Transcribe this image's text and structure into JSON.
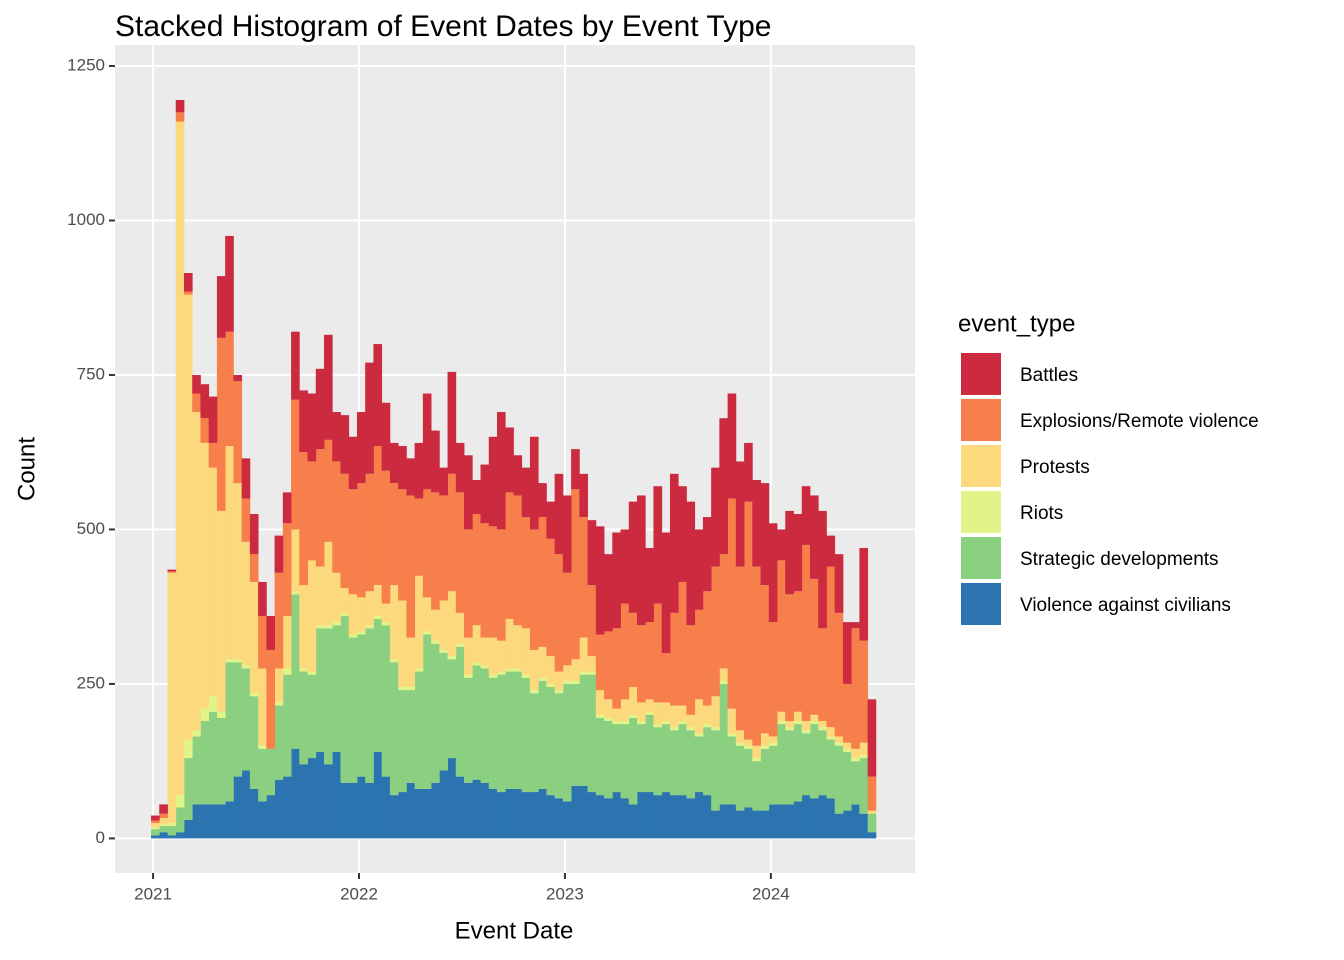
{
  "chart_data": {
    "type": "histogram",
    "stacked": true,
    "title": "Stacked Histogram of Event Dates by Event Type",
    "x_label": "Event Date",
    "y_label": "Count",
    "legend_title": "event_type",
    "legend": "right",
    "grid": true,
    "xlim": [
      2020.815,
      2024.7
    ],
    "xticks": [
      2021,
      2022,
      2023,
      2024
    ],
    "ylim": [
      -56,
      1284
    ],
    "yticks": [
      0,
      250,
      500,
      750,
      1000,
      1250
    ],
    "bins": [
      2020.99,
      2021.03,
      2021.07,
      2021.11,
      2021.15,
      2021.19,
      2021.23,
      2021.27,
      2021.31,
      2021.35,
      2021.39,
      2021.43,
      2021.47,
      2021.51,
      2021.55,
      2021.59,
      2021.63,
      2021.67,
      2021.71,
      2021.75,
      2021.79,
      2021.83,
      2021.87,
      2021.91,
      2021.95,
      2021.99,
      2022.03,
      2022.07,
      2022.11,
      2022.15,
      2022.19,
      2022.23,
      2022.27,
      2022.31,
      2022.35,
      2022.39,
      2022.43,
      2022.47,
      2022.51,
      2022.55,
      2022.59,
      2022.63,
      2022.67,
      2022.71,
      2022.75,
      2022.79,
      2022.83,
      2022.87,
      2022.91,
      2022.95,
      2022.99,
      2023.03,
      2023.07,
      2023.11,
      2023.15,
      2023.19,
      2023.23,
      2023.27,
      2023.31,
      2023.35,
      2023.39,
      2023.43,
      2023.47,
      2023.51,
      2023.55,
      2023.59,
      2023.63,
      2023.67,
      2023.71,
      2023.75,
      2023.79,
      2023.83,
      2023.87,
      2023.91,
      2023.95,
      2023.99,
      2024.03,
      2024.07,
      2024.11,
      2024.15,
      2024.19,
      2024.23,
      2024.27,
      2024.31,
      2024.35,
      2024.39,
      2024.43,
      2024.47,
      2024.51
    ],
    "series": [
      {
        "name": "Battles",
        "color": "#cc2a3f",
        "values": [
          8,
          15,
          3,
          20,
          30,
          30,
          55,
          75,
          100,
          155,
          10,
          65,
          65,
          55,
          55,
          60,
          50,
          110,
          100,
          110,
          130,
          170,
          80,
          95,
          85,
          115,
          180,
          165,
          110,
          65,
          70,
          60,
          90,
          155,
          100,
          45,
          165,
          80,
          120,
          55,
          95,
          145,
          190,
          105,
          65,
          80,
          150,
          55,
          60,
          130,
          125,
          65,
          70,
          105,
          175,
          125,
          155,
          120,
          180,
          210,
          120,
          190,
          195,
          225,
          155,
          200,
          130,
          120,
          160,
          220,
          170,
          170,
          95,
          140,
          165,
          160,
          50,
          135,
          125,
          95,
          135,
          190,
          50,
          95,
          100,
          10,
          150,
          125
        ]
      },
      {
        "name": "Explosions/Remote violence",
        "color": "#f67f4b",
        "values": [
          4,
          7,
          2,
          15,
          5,
          30,
          40,
          40,
          280,
          185,
          165,
          70,
          45,
          85,
          160,
          155,
          150,
          210,
          215,
          160,
          190,
          165,
          180,
          185,
          170,
          185,
          190,
          225,
          215,
          165,
          180,
          230,
          125,
          175,
          190,
          170,
          190,
          195,
          175,
          180,
          185,
          180,
          180,
          205,
          210,
          180,
          195,
          210,
          190,
          190,
          150,
          275,
          195,
          115,
          90,
          110,
          130,
          155,
          120,
          125,
          125,
          160,
          80,
          150,
          200,
          145,
          145,
          185,
          210,
          185,
          340,
          265,
          385,
          290,
          240,
          185,
          245,
          205,
          195,
          285,
          220,
          150,
          260,
          200,
          95,
          195,
          165,
          55
        ]
      },
      {
        "name": "Protests",
        "color": "#fcd97c",
        "values": [
          7,
          10,
          405,
          1090,
          720,
          515,
          430,
          370,
          325,
          345,
          285,
          200,
          180,
          125,
          0,
          55,
          85,
          100,
          135,
          180,
          95,
          135,
          80,
          40,
          65,
          55,
          55,
          50,
          30,
          120,
          140,
          80,
          150,
          55,
          50,
          80,
          105,
          50,
          60,
          60,
          45,
          60,
          50,
          80,
          70,
          75,
          65,
          50,
          45,
          30,
          25,
          35,
          55,
          25,
          40,
          30,
          20,
          35,
          45,
          30,
          20,
          35,
          30,
          35,
          25,
          20,
          55,
          30,
          50,
          20,
          40,
          20,
          10,
          20,
          20,
          10,
          15,
          10,
          15,
          15,
          10,
          10,
          15,
          10,
          10,
          15,
          20,
          5
        ]
      },
      {
        "name": "Riots",
        "color": "#e1f48a",
        "values": [
          3,
          3,
          5,
          20,
          30,
          10,
          20,
          25,
          10,
          5,
          5,
          5,
          5,
          5,
          0,
          5,
          10,
          5,
          5,
          5,
          5,
          5,
          5,
          5,
          5,
          5,
          5,
          5,
          5,
          5,
          5,
          5,
          5,
          5,
          5,
          5,
          5,
          5,
          5,
          5,
          5,
          5,
          5,
          5,
          5,
          5,
          5,
          5,
          5,
          5,
          5,
          5,
          5,
          5,
          5,
          5,
          5,
          5,
          5,
          5,
          5,
          5,
          5,
          5,
          5,
          5,
          5,
          5,
          5,
          5,
          5,
          5,
          5,
          5,
          5,
          5,
          5,
          5,
          5,
          5,
          5,
          5,
          5,
          5,
          5,
          5,
          5,
          0
        ]
      },
      {
        "name": "Strategic developments",
        "color": "#8bcf80",
        "values": [
          10,
          10,
          15,
          40,
          100,
          110,
          135,
          150,
          140,
          225,
          185,
          165,
          150,
          85,
          75,
          120,
          165,
          250,
          150,
          135,
          200,
          220,
          205,
          270,
          235,
          230,
          250,
          215,
          245,
          215,
          165,
          150,
          190,
          250,
          225,
          190,
          160,
          210,
          170,
          185,
          185,
          180,
          190,
          190,
          190,
          185,
          160,
          175,
          175,
          170,
          190,
          165,
          180,
          190,
          125,
          125,
          110,
          120,
          140,
          110,
          125,
          110,
          110,
          105,
          115,
          110,
          90,
          110,
          130,
          195,
          110,
          105,
          95,
          80,
          100,
          95,
          130,
          120,
          125,
          100,
          120,
          105,
          95,
          110,
          95,
          70,
          90,
          30
        ]
      },
      {
        "name": "Violence against civilians",
        "color": "#2b74b0",
        "values": [
          5,
          10,
          5,
          10,
          30,
          55,
          55,
          55,
          55,
          60,
          100,
          110,
          80,
          60,
          70,
          95,
          100,
          145,
          120,
          130,
          140,
          120,
          140,
          90,
          90,
          100,
          90,
          140,
          100,
          70,
          75,
          90,
          80,
          80,
          90,
          110,
          130,
          100,
          90,
          95,
          90,
          80,
          75,
          80,
          80,
          75,
          75,
          80,
          70,
          65,
          60,
          85,
          85,
          75,
          70,
          65,
          75,
          65,
          55,
          75,
          75,
          70,
          75,
          70,
          70,
          65,
          75,
          70,
          45,
          55,
          55,
          45,
          50,
          45,
          45,
          55,
          55,
          55,
          60,
          70,
          65,
          70,
          65,
          40,
          45,
          55,
          40,
          10
        ]
      }
    ]
  }
}
